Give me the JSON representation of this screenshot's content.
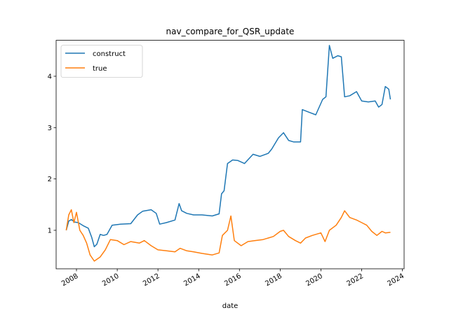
{
  "chart_data": {
    "type": "line",
    "title": "nav_compare_for_QSR_update",
    "xlabel": "date",
    "ylabel": "",
    "x_type": "date",
    "xlim": [
      "2007-01-01",
      "2024-02-01"
    ],
    "ylim": [
      0.25,
      4.7
    ],
    "x_ticks": [
      "2008",
      "2010",
      "2012",
      "2014",
      "2016",
      "2018",
      "2020",
      "2022",
      "2024"
    ],
    "y_ticks": [
      "1",
      "2",
      "3",
      "4"
    ],
    "grid": false,
    "legend": "upper-left",
    "series": [
      {
        "name": "construct",
        "color": "#1f77b4",
        "points": [
          [
            "2007-07-01",
            1.0
          ],
          [
            "2007-08-15",
            1.18
          ],
          [
            "2007-10-01",
            1.21
          ],
          [
            "2007-12-01",
            1.16
          ],
          [
            "2008-02-01",
            1.15
          ],
          [
            "2008-05-01",
            1.09
          ],
          [
            "2008-08-01",
            1.04
          ],
          [
            "2008-10-01",
            0.86
          ],
          [
            "2008-11-15",
            0.68
          ],
          [
            "2009-01-01",
            0.73
          ],
          [
            "2009-03-01",
            0.92
          ],
          [
            "2009-05-01",
            0.9
          ],
          [
            "2009-07-01",
            0.92
          ],
          [
            "2009-10-01",
            1.1
          ],
          [
            "2010-03-01",
            1.12
          ],
          [
            "2010-09-01",
            1.13
          ],
          [
            "2011-01-01",
            1.3
          ],
          [
            "2011-04-01",
            1.37
          ],
          [
            "2011-09-01",
            1.4
          ],
          [
            "2011-12-01",
            1.33
          ],
          [
            "2012-02-01",
            1.12
          ],
          [
            "2012-06-01",
            1.15
          ],
          [
            "2012-11-01",
            1.2
          ],
          [
            "2013-01-15",
            1.52
          ],
          [
            "2013-03-01",
            1.38
          ],
          [
            "2013-06-01",
            1.33
          ],
          [
            "2013-10-01",
            1.3
          ],
          [
            "2014-03-01",
            1.3
          ],
          [
            "2014-09-01",
            1.28
          ],
          [
            "2015-01-01",
            1.32
          ],
          [
            "2015-02-15",
            1.71
          ],
          [
            "2015-04-01",
            1.77
          ],
          [
            "2015-06-01",
            2.3
          ],
          [
            "2015-09-01",
            2.37
          ],
          [
            "2015-12-01",
            2.36
          ],
          [
            "2016-04-01",
            2.3
          ],
          [
            "2016-09-01",
            2.48
          ],
          [
            "2017-01-01",
            2.44
          ],
          [
            "2017-06-01",
            2.5
          ],
          [
            "2017-08-01",
            2.58
          ],
          [
            "2017-12-01",
            2.8
          ],
          [
            "2018-03-01",
            2.9
          ],
          [
            "2018-06-01",
            2.75
          ],
          [
            "2018-09-01",
            2.72
          ],
          [
            "2019-01-01",
            2.72
          ],
          [
            "2019-02-01",
            3.35
          ],
          [
            "2019-06-01",
            3.3
          ],
          [
            "2019-10-01",
            3.25
          ],
          [
            "2020-02-01",
            3.55
          ],
          [
            "2020-04-01",
            3.6
          ],
          [
            "2020-06-01",
            4.6
          ],
          [
            "2020-08-01",
            4.35
          ],
          [
            "2020-11-01",
            4.4
          ],
          [
            "2021-01-01",
            4.38
          ],
          [
            "2021-03-01",
            3.6
          ],
          [
            "2021-06-01",
            3.62
          ],
          [
            "2021-10-01",
            3.7
          ],
          [
            "2022-01-01",
            3.52
          ],
          [
            "2022-05-01",
            3.5
          ],
          [
            "2022-09-01",
            3.52
          ],
          [
            "2022-11-01",
            3.4
          ],
          [
            "2023-01-01",
            3.45
          ],
          [
            "2023-03-01",
            3.8
          ],
          [
            "2023-05-01",
            3.75
          ],
          [
            "2023-06-01",
            3.55
          ]
        ]
      },
      {
        "name": "true",
        "color": "#ff7f0e",
        "points": [
          [
            "2007-07-01",
            1.0
          ],
          [
            "2007-08-15",
            1.3
          ],
          [
            "2007-10-01",
            1.4
          ],
          [
            "2007-11-15",
            1.15
          ],
          [
            "2008-01-01",
            1.35
          ],
          [
            "2008-03-01",
            1.0
          ],
          [
            "2008-05-01",
            0.9
          ],
          [
            "2008-07-01",
            0.75
          ],
          [
            "2008-09-01",
            0.52
          ],
          [
            "2008-11-15",
            0.4
          ],
          [
            "2009-03-01",
            0.48
          ],
          [
            "2009-06-01",
            0.62
          ],
          [
            "2009-09-01",
            0.82
          ],
          [
            "2010-01-01",
            0.8
          ],
          [
            "2010-05-01",
            0.72
          ],
          [
            "2010-09-01",
            0.78
          ],
          [
            "2011-02-01",
            0.75
          ],
          [
            "2011-05-01",
            0.8
          ],
          [
            "2011-09-01",
            0.7
          ],
          [
            "2012-01-01",
            0.62
          ],
          [
            "2012-06-01",
            0.6
          ],
          [
            "2012-11-01",
            0.58
          ],
          [
            "2013-02-01",
            0.65
          ],
          [
            "2013-06-01",
            0.6
          ],
          [
            "2013-10-01",
            0.58
          ],
          [
            "2014-03-01",
            0.55
          ],
          [
            "2014-09-01",
            0.52
          ],
          [
            "2015-01-01",
            0.56
          ],
          [
            "2015-03-01",
            0.9
          ],
          [
            "2015-06-01",
            1.0
          ],
          [
            "2015-08-01",
            1.28
          ],
          [
            "2015-10-01",
            0.8
          ],
          [
            "2016-02-01",
            0.7
          ],
          [
            "2016-06-01",
            0.78
          ],
          [
            "2016-10-01",
            0.8
          ],
          [
            "2017-03-01",
            0.82
          ],
          [
            "2017-09-01",
            0.88
          ],
          [
            "2018-01-01",
            0.98
          ],
          [
            "2018-03-01",
            1.0
          ],
          [
            "2018-06-01",
            0.88
          ],
          [
            "2018-10-01",
            0.8
          ],
          [
            "2019-01-01",
            0.75
          ],
          [
            "2019-04-01",
            0.85
          ],
          [
            "2019-08-01",
            0.9
          ],
          [
            "2020-01-01",
            0.95
          ],
          [
            "2020-03-15",
            0.78
          ],
          [
            "2020-06-01",
            1.0
          ],
          [
            "2020-10-01",
            1.1
          ],
          [
            "2021-01-01",
            1.25
          ],
          [
            "2021-03-01",
            1.38
          ],
          [
            "2021-06-01",
            1.25
          ],
          [
            "2021-10-01",
            1.2
          ],
          [
            "2022-01-01",
            1.15
          ],
          [
            "2022-04-01",
            1.1
          ],
          [
            "2022-07-01",
            0.98
          ],
          [
            "2022-10-01",
            0.9
          ],
          [
            "2023-01-01",
            0.98
          ],
          [
            "2023-03-01",
            0.95
          ],
          [
            "2023-06-01",
            0.96
          ]
        ]
      }
    ]
  }
}
